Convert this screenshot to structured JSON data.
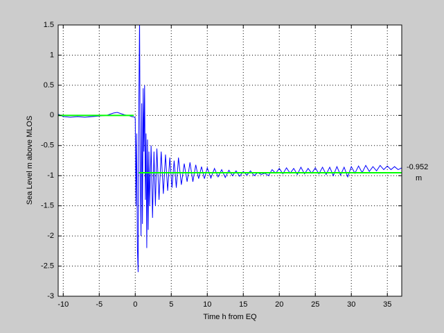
{
  "chart_data": {
    "type": "line",
    "xlabel": "Time h from EQ",
    "ylabel": "Sea Level m above MLOS",
    "annotations": [
      "-0.952",
      "m"
    ],
    "xlim": [
      -10.7,
      37
    ],
    "ylim": [
      -3,
      1.5
    ],
    "xticks": [
      -10,
      -5,
      0,
      5,
      10,
      15,
      20,
      25,
      30,
      35
    ],
    "yticks": [
      -3,
      -2.5,
      -2,
      -1.5,
      -1,
      -0.5,
      0,
      0.5,
      1,
      1.5
    ],
    "grid": true,
    "series": [
      {
        "color": "#0000ff",
        "x": [
          -10.7,
          -10,
          -9,
          -8,
          -7,
          -6,
          -5,
          -4,
          -3.5,
          -3,
          -2.5,
          -2,
          -1.5,
          -1,
          -0.5,
          -0.1,
          0,
          0.1,
          0.2,
          0.3,
          0.4,
          0.5,
          0.6,
          0.7,
          0.8,
          0.9,
          1.0,
          1.1,
          1.2,
          1.3,
          1.4,
          1.5,
          1.6,
          1.7,
          1.8,
          1.9,
          2.0,
          2.2,
          2.4,
          2.6,
          2.8,
          3.0,
          3.3,
          3.6,
          3.9,
          4.2,
          4.5,
          4.8,
          5.1,
          5.4,
          5.7,
          6.0,
          6.4,
          6.8,
          7.2,
          7.6,
          8.0,
          8.4,
          8.8,
          9.2,
          9.6,
          10,
          10.5,
          11,
          11.5,
          12,
          12.5,
          13,
          13.5,
          14,
          14.5,
          15,
          15.5,
          16,
          16.5,
          17,
          17.5,
          18,
          18.5,
          19,
          19.5,
          20,
          20.5,
          21,
          21.5,
          22,
          22.5,
          23,
          23.5,
          24,
          24.5,
          25,
          25.5,
          26,
          26.5,
          27,
          27.5,
          28,
          28.5,
          29,
          29.5,
          30,
          30.5,
          31,
          31.5,
          32,
          32.5,
          33,
          33.5,
          34,
          34.5,
          35,
          35.5,
          36,
          36.5,
          37
        ],
        "values": [
          0.02,
          -0.02,
          -0.03,
          -0.02,
          -0.03,
          -0.02,
          -0.01,
          0,
          0.02,
          0.04,
          0.05,
          0.03,
          0.01,
          0,
          -0.02,
          -0.03,
          -0.05,
          -1.5,
          -0.3,
          -2.2,
          -2.6,
          0.2,
          1.6,
          -1.0,
          -2.0,
          0.2,
          -1.8,
          0.45,
          -0.6,
          0.5,
          -1.4,
          -0.3,
          -2.2,
          -0.4,
          -1.9,
          -0.6,
          -1.5,
          -0.5,
          -1.7,
          -0.6,
          -1.5,
          -0.55,
          -1.4,
          -0.6,
          -1.3,
          -0.65,
          -1.25,
          -0.7,
          -1.2,
          -0.75,
          -1.2,
          -0.7,
          -1.15,
          -0.8,
          -1.1,
          -0.78,
          -1.1,
          -0.82,
          -1.05,
          -0.85,
          -1.05,
          -0.87,
          -1.04,
          -0.88,
          -1.02,
          -0.9,
          -1.03,
          -0.91,
          -1.0,
          -0.92,
          -1.01,
          -0.93,
          -0.99,
          -0.92,
          -1.0,
          -0.95,
          -0.98,
          -0.96,
          -1.0,
          -0.9,
          -0.96,
          -0.88,
          -0.97,
          -0.87,
          -0.96,
          -0.88,
          -0.98,
          -0.86,
          -0.97,
          -0.88,
          -0.96,
          -0.87,
          -0.97,
          -0.86,
          -0.98,
          -0.86,
          -1.0,
          -0.85,
          -0.99,
          -0.86,
          -1.02,
          -0.85,
          -0.96,
          -0.84,
          -0.95,
          -0.83,
          -0.93,
          -0.85,
          -0.92,
          -0.83,
          -0.9,
          -0.84,
          -0.9,
          -0.85,
          -0.9,
          -0.87
        ]
      },
      {
        "color": "#00ff00",
        "x": [
          -10.7,
          -0.2,
          0,
          0.5,
          37
        ],
        "values": [
          0,
          0,
          null,
          -0.952,
          -0.952
        ]
      }
    ]
  }
}
